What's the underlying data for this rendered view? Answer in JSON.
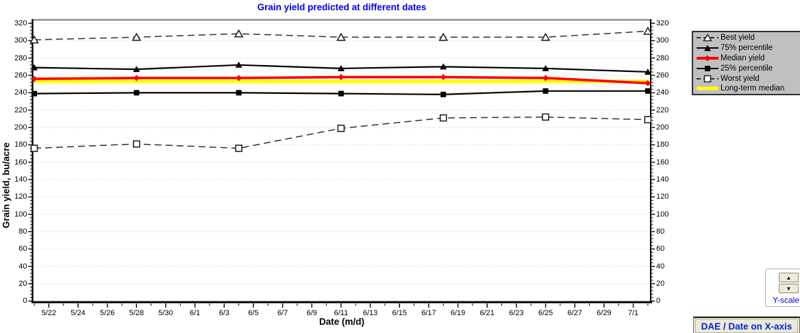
{
  "title": "Grain yield predicted at different dates",
  "chart_data": {
    "type": "line",
    "title": "Grain yield predicted at different dates",
    "xlabel": "Date (m/d)",
    "ylabel": "Grain yield, bu/acre",
    "ylim": [
      0,
      320
    ],
    "y_tick_step": 20,
    "y_tick_labels": [
      0,
      20,
      40,
      60,
      80,
      100,
      120,
      140,
      160,
      180,
      200,
      220,
      240,
      260,
      280,
      300,
      320
    ],
    "x_tick_labels": [
      "5/22",
      "5/24",
      "5/26",
      "5/28",
      "5/30",
      "6/1",
      "6/3",
      "6/5",
      "6/7",
      "6/9",
      "6/11",
      "6/13",
      "6/15",
      "6/17",
      "6/19",
      "6/21",
      "6/23",
      "6/25",
      "6/27",
      "6/29",
      "7/1"
    ],
    "x_tick_serials": [
      1,
      3,
      5,
      7,
      9,
      11,
      13,
      15,
      17,
      19,
      21,
      23,
      25,
      27,
      29,
      31,
      33,
      35,
      37,
      39,
      41
    ],
    "grid": "horizontal-dotted",
    "legend_position": "outside-top-right",
    "x_dates": [
      "5/21",
      "5/28",
      "6/4",
      "6/11",
      "6/18",
      "6/25",
      "7/2"
    ],
    "x_serial": [
      0,
      7,
      14,
      21,
      28,
      35,
      42
    ],
    "series": [
      {
        "name": "Long-term median",
        "style": "thick-line",
        "color": "#ffff00",
        "values": [
          253,
          253,
          253,
          253,
          253,
          253,
          253
        ]
      },
      {
        "name": "Median yield",
        "style": "thick-diamond",
        "color": "#ff0000",
        "values": [
          256,
          257,
          257,
          258,
          258,
          257,
          251
        ]
      },
      {
        "name": "Best yield",
        "style": "dashed-open-triangle",
        "color": "#2f2f2f",
        "values": [
          301,
          304,
          308,
          304,
          304,
          304,
          311
        ]
      },
      {
        "name": "75% percentile",
        "style": "solid-filled-triangle",
        "color": "#000000",
        "values": [
          269,
          267,
          272,
          268,
          270,
          268,
          264
        ]
      },
      {
        "name": "25% percentile",
        "style": "solid-filled-square",
        "color": "#000000",
        "values": [
          239,
          240,
          240,
          239,
          238,
          242,
          242
        ]
      },
      {
        "name": "Worst yield",
        "style": "dashed-open-square",
        "color": "#2f2f2f",
        "values": [
          176,
          181,
          176,
          199,
          211,
          212,
          209
        ]
      }
    ]
  },
  "legend": {
    "order": [
      "Best yield",
      "75% percentile",
      "Median yield",
      "25% percentile",
      "Worst yield",
      "Long-term median"
    ]
  },
  "controls": {
    "y_scale": {
      "label": "Y-scale",
      "up_icon": "▲",
      "down_icon": "▼"
    },
    "dae_button": {
      "label": "DAE / Date on X-axis"
    }
  },
  "colors": {
    "title_blue": "#0000f0",
    "control_blue": "#0000e8",
    "legend_bg": "#c0c0c0",
    "median_red": "#ff0000",
    "long_term_yellow": "#ffff00",
    "gridline": "#dadada"
  }
}
